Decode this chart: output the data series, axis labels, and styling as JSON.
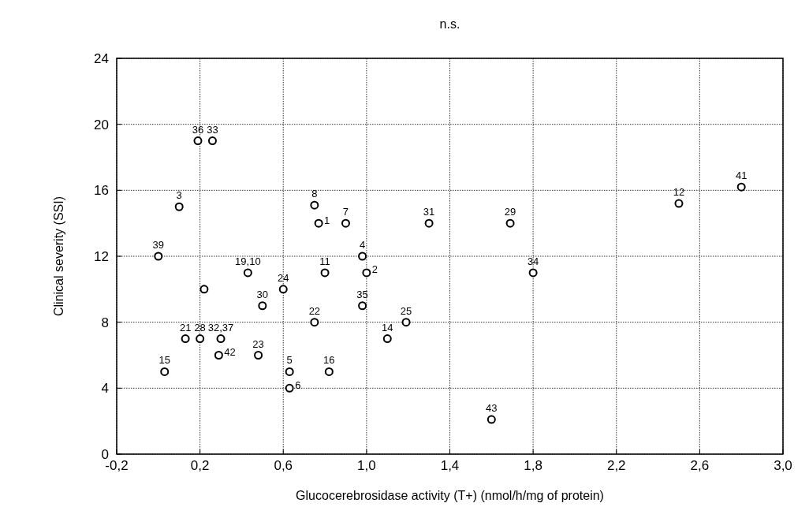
{
  "chart_data": {
    "type": "scatter",
    "title": "n.s.",
    "xlabel": "Glucocerebrosidase activity (T+) (nmol/h/mg of protein)",
    "ylabel": "Clinical severity (SSI)",
    "series": [
      {
        "color": "#000000",
        "x": [
          0.19,
          0.26,
          0.1,
          0.75,
          0.77,
          0.9,
          0.0,
          0.43,
          0.8,
          0.22,
          0.6,
          0.5,
          0.75,
          0.13,
          0.2,
          0.3,
          0.29,
          0.48,
          0.03,
          0.63,
          0.63,
          0.82,
          1.3,
          1.69,
          0.98,
          1.0,
          0.98,
          1.19,
          1.1,
          1.8,
          2.5,
          2.8,
          1.6
        ],
        "values": [
          19,
          19,
          15,
          15.1,
          14,
          14,
          12,
          11,
          11,
          10,
          10,
          9,
          8,
          7,
          7,
          7,
          6,
          6,
          5,
          5,
          4,
          5,
          14,
          14,
          12,
          11,
          9,
          8,
          7,
          11,
          15.2,
          16.2,
          2.1
        ]
      }
    ],
    "annotations": [
      {
        "text": "36",
        "x": 0.19,
        "y": 19
      },
      {
        "text": "33",
        "x": 0.26,
        "y": 19
      },
      {
        "text": "3",
        "x": 0.1,
        "y": 15
      },
      {
        "text": "8",
        "x": 0.75,
        "y": 15.1
      },
      {
        "text": "1",
        "x": 0.77,
        "y": 14
      },
      {
        "text": "7",
        "x": 0.9,
        "y": 14
      },
      {
        "text": "39",
        "x": 0.0,
        "y": 12
      },
      {
        "text": "19,10",
        "x": 0.43,
        "y": 11
      },
      {
        "text": "11",
        "x": 0.8,
        "y": 11
      },
      {
        "text": "24",
        "x": 0.6,
        "y": 10
      },
      {
        "text": "30",
        "x": 0.5,
        "y": 9
      },
      {
        "text": "22",
        "x": 0.75,
        "y": 8
      },
      {
        "text": "21",
        "x": 0.13,
        "y": 7
      },
      {
        "text": "28",
        "x": 0.2,
        "y": 7
      },
      {
        "text": "32,37",
        "x": 0.3,
        "y": 7
      },
      {
        "text": "42",
        "x": 0.29,
        "y": 6
      },
      {
        "text": "23",
        "x": 0.48,
        "y": 6
      },
      {
        "text": "15",
        "x": 0.03,
        "y": 5
      },
      {
        "text": "5",
        "x": 0.63,
        "y": 5
      },
      {
        "text": "6",
        "x": 0.63,
        "y": 4
      },
      {
        "text": "16",
        "x": 0.82,
        "y": 5
      },
      {
        "text": "31",
        "x": 1.3,
        "y": 14
      },
      {
        "text": "29",
        "x": 1.69,
        "y": 14
      },
      {
        "text": "4",
        "x": 0.98,
        "y": 12
      },
      {
        "text": "2",
        "x": 1.0,
        "y": 11
      },
      {
        "text": "35",
        "x": 0.98,
        "y": 9
      },
      {
        "text": "25",
        "x": 1.19,
        "y": 8
      },
      {
        "text": "14",
        "x": 1.1,
        "y": 7
      },
      {
        "text": "34",
        "x": 1.8,
        "y": 11
      },
      {
        "text": "12",
        "x": 2.5,
        "y": 15.2
      },
      {
        "text": "41",
        "x": 2.8,
        "y": 16.2
      },
      {
        "text": "43",
        "x": 1.6,
        "y": 2.1
      }
    ],
    "xlim": [
      -0.2,
      3.0
    ],
    "xticks": [
      {
        "value": -0.2,
        "label": "-0,2"
      },
      {
        "value": 0.2,
        "label": "0,2"
      },
      {
        "value": 0.6,
        "label": "0,6"
      },
      {
        "value": 1.0,
        "label": "1,0"
      },
      {
        "value": 1.4,
        "label": "1,4"
      },
      {
        "value": 1.8,
        "label": "1,8"
      },
      {
        "value": 2.2,
        "label": "2,2"
      },
      {
        "value": 2.6,
        "label": "2,6"
      },
      {
        "value": 3.0,
        "label": "3,0"
      }
    ],
    "ylim": [
      0,
      24
    ],
    "yticks": [
      0,
      4,
      8,
      12,
      16,
      20,
      24
    ],
    "grid": true,
    "marker": "circle"
  }
}
